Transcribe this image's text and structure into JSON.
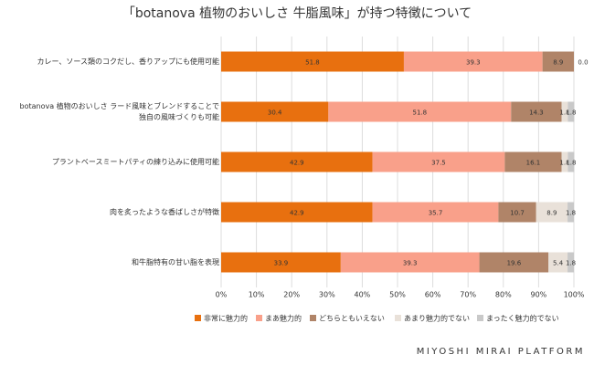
{
  "chart_data": {
    "type": "stacked-bar-horizontal",
    "title": "「botanova 植物のおいしさ 牛脂風味」が持つ特徴について",
    "categories": [
      "カレー、ソース類のコクだし、香りアップにも使用可能",
      "botanova 植物のおいしさ ラード風味とブレンドすることで\n独自の風味づくりも可能",
      "プラントベースミートパティの練り込みに使用可能",
      "肉を炙ったような香ばしさが特徴",
      "和牛脂特有の甘い脂を表現"
    ],
    "series": [
      {
        "name": "非常に魅力的",
        "color": "#e8700f",
        "values": [
          51.8,
          30.4,
          42.9,
          42.9,
          33.9
        ]
      },
      {
        "name": "まあ魅力的",
        "color": "#f9a08a",
        "values": [
          39.3,
          51.8,
          37.5,
          35.7,
          39.3
        ]
      },
      {
        "name": "どちらともいえない",
        "color": "#b08468",
        "values": [
          8.9,
          14.3,
          16.1,
          10.7,
          19.6
        ]
      },
      {
        "name": "あまり魅力的でない",
        "color": "#e9e1d9",
        "values": [
          0.0,
          1.8,
          1.8,
          8.9,
          5.4
        ],
        "value_labels": [
          "0.0",
          "1.8",
          "1.8",
          "8.9",
          "5.4"
        ]
      },
      {
        "name": "まったく魅力的でない",
        "color": "#c9c9c9",
        "values": [
          null,
          1.8,
          1.8,
          1.8,
          1.8
        ]
      }
    ],
    "xlim": [
      0,
      100
    ],
    "xticks": [
      {
        "value": 0,
        "label": "0%"
      },
      {
        "value": 10,
        "label": "10%"
      },
      {
        "value": 20,
        "label": "20%"
      },
      {
        "value": 30,
        "label": "30%"
      },
      {
        "value": 40,
        "label": "40%"
      },
      {
        "value": 50,
        "label": "50%"
      },
      {
        "value": 60,
        "label": "60%"
      },
      {
        "value": 70,
        "label": "70%"
      },
      {
        "value": 80,
        "label": "80%"
      },
      {
        "value": 90,
        "label": "90%"
      },
      {
        "value": 100,
        "label": "100%"
      }
    ],
    "grid": true,
    "legend": "bottom",
    "footer": "MIYOSHI MIRAI PLATFORM"
  }
}
